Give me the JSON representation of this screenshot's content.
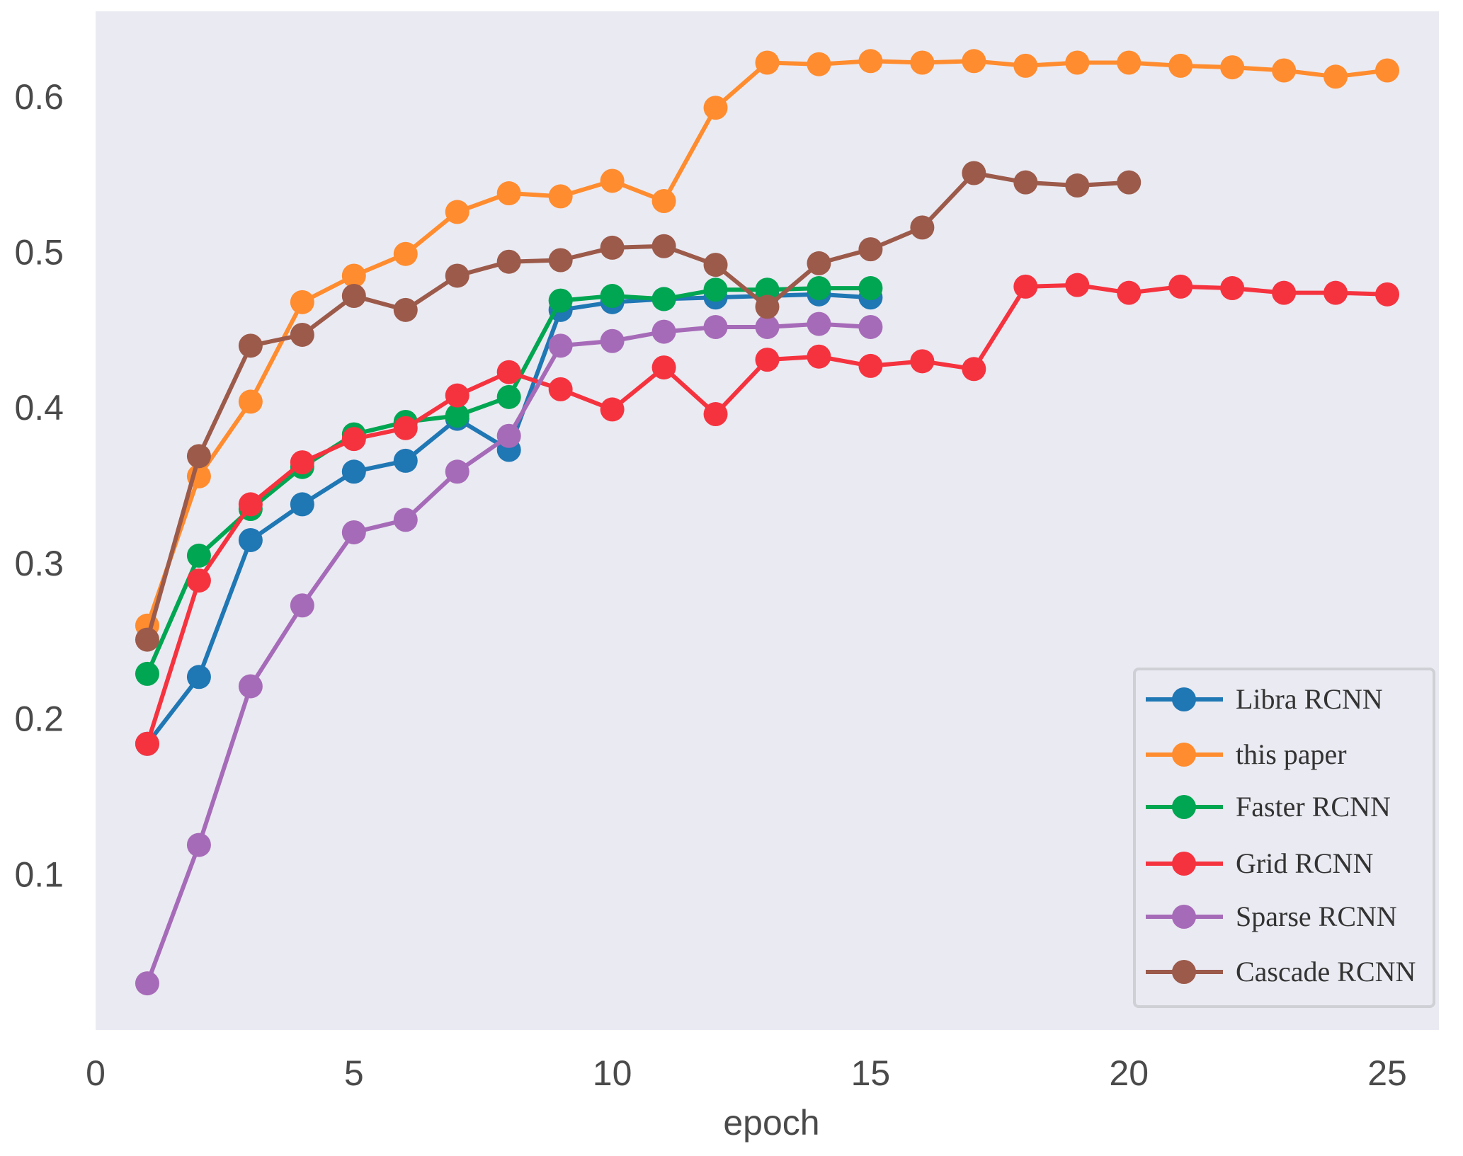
{
  "chart_data": {
    "type": "line",
    "title": "",
    "xlabel": "epoch",
    "ylabel": "",
    "xlim": [
      0,
      26
    ],
    "ylim": [
      0.0,
      0.655
    ],
    "xticks": [
      0,
      5,
      10,
      15,
      20,
      25
    ],
    "yticks": [
      0.1,
      0.2,
      0.3,
      0.4,
      0.5,
      0.6
    ],
    "xtick_labels": [
      "0",
      "5",
      "10",
      "15",
      "20",
      "25"
    ],
    "ytick_labels": [
      "0.1",
      "0.2",
      "0.3",
      "0.4",
      "0.5",
      "0.6"
    ],
    "grid": false,
    "legend_position": "lower-right",
    "background": "#eaeaf2",
    "series": [
      {
        "name": "Libra RCNN",
        "color": "#1f77b4",
        "x": [
          1,
          2,
          3,
          4,
          5,
          6,
          7,
          8,
          9,
          10,
          11,
          12,
          13,
          14,
          15
        ],
        "values": [
          0.184,
          0.227,
          0.315,
          0.338,
          0.359,
          0.366,
          0.393,
          0.373,
          0.463,
          0.468,
          0.47,
          0.471,
          0.472,
          0.473,
          0.471
        ]
      },
      {
        "name": "this paper",
        "color": "#ff8c2e",
        "x": [
          1,
          2,
          3,
          4,
          5,
          6,
          7,
          8,
          9,
          10,
          11,
          12,
          13,
          14,
          15,
          16,
          17,
          18,
          19,
          20,
          21,
          22,
          23,
          24,
          25
        ],
        "values": [
          0.26,
          0.356,
          0.404,
          0.468,
          0.485,
          0.499,
          0.526,
          0.538,
          0.536,
          0.546,
          0.533,
          0.593,
          0.622,
          0.621,
          0.623,
          0.622,
          0.623,
          0.62,
          0.622,
          0.622,
          0.62,
          0.619,
          0.617,
          0.613,
          0.617
        ]
      },
      {
        "name": "Faster RCNN",
        "color": "#00a651",
        "x": [
          1,
          2,
          3,
          4,
          5,
          6,
          7,
          8,
          9,
          10,
          11,
          12,
          13,
          14,
          15
        ],
        "values": [
          0.229,
          0.305,
          0.335,
          0.362,
          0.383,
          0.391,
          0.395,
          0.407,
          0.469,
          0.472,
          0.47,
          0.476,
          0.476,
          0.477,
          0.477
        ]
      },
      {
        "name": "Grid RCNN",
        "color": "#f5333f",
        "x": [
          1,
          2,
          3,
          4,
          5,
          6,
          7,
          8,
          9,
          10,
          11,
          12,
          13,
          14,
          15,
          16,
          17,
          18,
          19,
          20,
          21,
          22,
          23,
          24,
          25
        ],
        "values": [
          0.184,
          0.289,
          0.338,
          0.365,
          0.38,
          0.387,
          0.408,
          0.423,
          0.412,
          0.399,
          0.426,
          0.396,
          0.431,
          0.433,
          0.427,
          0.43,
          0.425,
          0.478,
          0.479,
          0.474,
          0.478,
          0.477,
          0.474,
          0.474,
          0.473
        ]
      },
      {
        "name": "Sparse RCNN",
        "color": "#a66bb8",
        "x": [
          1,
          2,
          3,
          4,
          5,
          6,
          7,
          8,
          9,
          10,
          11,
          12,
          13,
          14,
          15
        ],
        "values": [
          0.03,
          0.119,
          0.221,
          0.273,
          0.32,
          0.328,
          0.359,
          0.382,
          0.44,
          0.443,
          0.449,
          0.452,
          0.452,
          0.454,
          0.452
        ]
      },
      {
        "name": "Cascade RCNN",
        "color": "#9c5a4a",
        "x": [
          1,
          2,
          3,
          4,
          5,
          6,
          7,
          8,
          9,
          10,
          11,
          12,
          13,
          14,
          15,
          16,
          17,
          18,
          19,
          20
        ],
        "values": [
          0.251,
          0.369,
          0.44,
          0.447,
          0.472,
          0.463,
          0.485,
          0.494,
          0.495,
          0.503,
          0.504,
          0.492,
          0.465,
          0.493,
          0.502,
          0.516,
          0.551,
          0.545,
          0.543,
          0.545
        ]
      }
    ]
  }
}
